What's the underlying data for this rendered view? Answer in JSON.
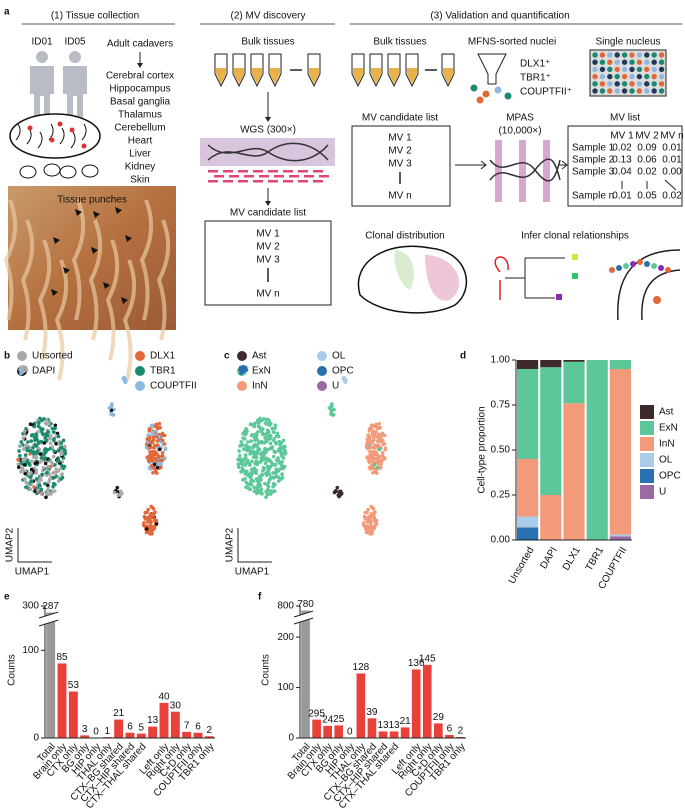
{
  "panel_labels": [
    "a",
    "b",
    "c",
    "d",
    "e",
    "f"
  ],
  "panel_a": {
    "sections": [
      "(1) Tissue collection",
      "(2) MV discovery",
      "(3) Validation and quantification"
    ],
    "donors": [
      "ID01",
      "ID05"
    ],
    "adult_cadavers": "Adult cadavers",
    "tissues": [
      "Cerebral cortex",
      "Hippocampus",
      "Basal ganglia",
      "Thalamus",
      "Cerebellum",
      "Heart",
      "Liver",
      "Kidney",
      "Skin"
    ],
    "tissue_punches": "Tissue punches",
    "bulk_tissues": "Bulk tissues",
    "wgs": "WGS (300×)",
    "mv_candidate_list": "MV candidate list",
    "mv_items": [
      "MV 1",
      "MV 2",
      "MV 3",
      "MV n"
    ],
    "sorted_nuclei": "MFNS-sorted nuclei",
    "markers": [
      "DLX1⁺",
      "TBR1⁺",
      "COUPTFII⁺"
    ],
    "single_nucleus": "Single nucleus",
    "mpas": "MPAS",
    "mpas_depth": "(10,000×)",
    "mv_list": {
      "title": "MV list",
      "columns": [
        "MV 1",
        "MV 2",
        "MV n"
      ],
      "rows": [
        [
          "Sample 1",
          "0.02",
          "0.09",
          "0.01"
        ],
        [
          "Sample 2",
          "0.13",
          "0.06",
          "0.01"
        ],
        [
          "Sample 3",
          "0.04",
          "0.02",
          "0.00"
        ],
        [
          "Sample n",
          "0.01",
          "0.05",
          "0.02"
        ]
      ]
    },
    "clonal_distribution": "Clonal distribution",
    "infer_clonal": "Infer clonal relationships"
  },
  "panel_b": {
    "legend": [
      {
        "name": "Unsorted",
        "color": "#aaaaaa"
      },
      {
        "name": "DAPI",
        "color": "#111111"
      },
      {
        "name": "DLX1",
        "color": "#e2683a"
      },
      {
        "name": "TBR1",
        "color": "#1a8a6e"
      },
      {
        "name": "COUPTFII",
        "color": "#8db8e0"
      }
    ],
    "xlabel": "UMAP1",
    "ylabel": "UMAP2"
  },
  "panel_c": {
    "legend": [
      {
        "name": "Ast",
        "color": "#3d2b2b"
      },
      {
        "name": "ExN",
        "color": "#5cc89a"
      },
      {
        "name": "InN",
        "color": "#f29a7a"
      },
      {
        "name": "OL",
        "color": "#a9cce8"
      },
      {
        "name": "OPC",
        "color": "#2a6fb0"
      },
      {
        "name": "U",
        "color": "#9b6aa5"
      }
    ],
    "xlabel": "UMAP1",
    "ylabel": "UMAP2"
  },
  "chart_data": [
    {
      "type": "stacked_bar",
      "ylabel": "Cell-type proportion",
      "categories": [
        "Unsorted",
        "DAPI",
        "DLX1",
        "TBR1",
        "COUPTFII"
      ],
      "series": [
        {
          "name": "Ast",
          "color": "#3d2b2b",
          "values": [
            0.05,
            0.04,
            0.01,
            0,
            0
          ]
        },
        {
          "name": "ExN",
          "color": "#5cc89a",
          "values": [
            0.5,
            0.71,
            0.23,
            1.0,
            0.05
          ]
        },
        {
          "name": "InN",
          "color": "#f29a7a",
          "values": [
            0.32,
            0.25,
            0.76,
            0,
            0.92
          ]
        },
        {
          "name": "OL",
          "color": "#a9cce8",
          "values": [
            0.06,
            0,
            0,
            0,
            0.01
          ]
        },
        {
          "name": "OPC",
          "color": "#2a6fb0",
          "values": [
            0.07,
            0,
            0,
            0,
            0
          ]
        },
        {
          "name": "U",
          "color": "#9b6aa5",
          "values": [
            0,
            0,
            0,
            0,
            0.02
          ]
        }
      ],
      "ylim": [
        0,
        1
      ],
      "yticks": [
        {
          "value": 0,
          "label": "0.00"
        },
        {
          "value": 0.25,
          "label": "0.25"
        },
        {
          "value": 0.5,
          "label": "0.50"
        },
        {
          "value": 0.75,
          "label": "0.75"
        },
        {
          "value": 1,
          "label": "1.00"
        }
      ],
      "legend": "right"
    },
    {
      "type": "bar",
      "ylabel": "Counts",
      "categories": [
        "Total",
        "Brain only",
        "CTX only",
        "BG only",
        "HIP only",
        "THAL only",
        "CTX–BG shared",
        "CTX–HIP shared",
        "CTX–THAL shared",
        null,
        "Left only",
        "Right only",
        "C+D only",
        "COUPTFII only",
        "TBR1 only"
      ],
      "values": [
        287,
        85,
        53,
        3,
        0,
        1,
        21,
        6,
        5,
        13,
        40,
        30,
        7,
        6,
        2
      ],
      "colors": [
        "#999999",
        "#e8413c",
        "#e8413c",
        "#e8413c",
        "#e8413c",
        "#e8413c",
        "#e8413c",
        "#e8413c",
        "#e8413c",
        "#e8413c",
        "#e8413c",
        "#e8413c",
        "#e8413c",
        "#e8413c",
        "#e8413c"
      ],
      "ylim": [
        0,
        300
      ],
      "yticks": [
        0,
        100,
        300
      ],
      "axis_break": [
        130,
        280
      ]
    },
    {
      "type": "bar",
      "ylabel": "Counts",
      "categories": [
        "Total",
        "Brain only",
        "CTX only",
        "BG only",
        "HIP only",
        "THAL only",
        "CTX–BG shared",
        "CTX–HIP shared",
        "CTX–THAL shared",
        null,
        "Left only",
        "Right only",
        "C+D only",
        "COUPTFII only",
        "TBR1 only"
      ],
      "values": [
        780,
        295,
        24,
        25,
        0,
        128,
        39,
        13,
        13,
        21,
        136,
        145,
        29,
        6,
        2
      ],
      "colors": [
        "#999999",
        "#e8413c",
        "#e8413c",
        "#e8413c",
        "#e8413c",
        "#e8413c",
        "#e8413c",
        "#e8413c",
        "#e8413c",
        "#e8413c",
        "#e8413c",
        "#e8413c",
        "#e8413c",
        "#e8413c",
        "#e8413c"
      ],
      "ylim": [
        0,
        800
      ],
      "yticks": [
        0,
        100,
        200,
        800
      ],
      "axis_break": [
        230,
        760
      ]
    }
  ]
}
